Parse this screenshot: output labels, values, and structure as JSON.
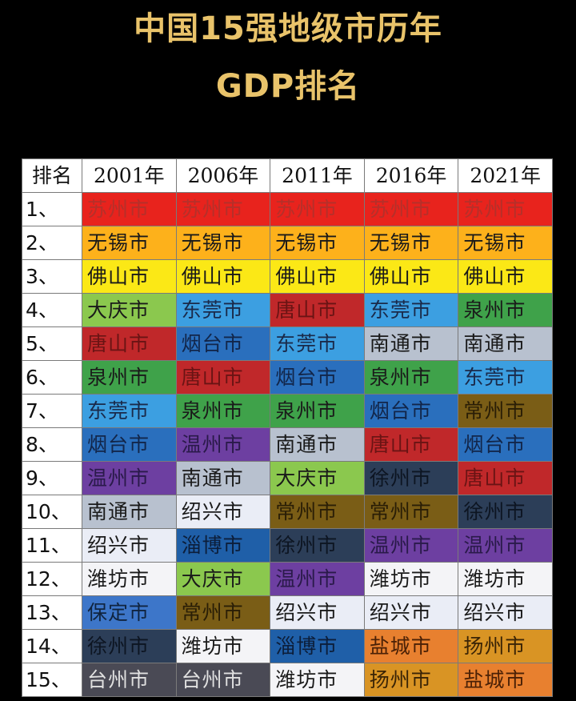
{
  "title_line1": "中国15强地级市历年",
  "title_line2": "GDP排名",
  "header": [
    "排名",
    "2001年",
    "2006年",
    "2011年",
    "2016年",
    "2021年"
  ],
  "colors": {
    "苏州市": {
      "bg": "#e8231d",
      "fg": "#b5302a"
    },
    "无锡市": {
      "bg": "#fdb11b",
      "fg": "#1a1a1a"
    },
    "佛山市": {
      "bg": "#fbe816",
      "fg": "#1a1a1a"
    },
    "大庆市": {
      "bg": "#8bc84e",
      "fg": "#1a1a1a"
    },
    "东莞市": {
      "bg": "#3c9fe1",
      "fg": "#1a2a4a"
    },
    "唐山市": {
      "bg": "#c0282a",
      "fg": "#6a1414"
    },
    "泉州市": {
      "bg": "#3fa24a",
      "fg": "#1a1a1a"
    },
    "烟台市": {
      "bg": "#2a6fbd",
      "fg": "#12264a"
    },
    "温州市": {
      "bg": "#6d3fa1",
      "fg": "#2a1a4a"
    },
    "南通市": {
      "bg": "#b8c1cf",
      "fg": "#1a1a1a"
    },
    "绍兴市": {
      "bg": "#eaedf6",
      "fg": "#1a1a1a"
    },
    "潍坊市": {
      "bg": "#f4f4f7",
      "fg": "#1a1a1a"
    },
    "保定市": {
      "bg": "#3d76c9",
      "fg": "#10243f"
    },
    "徐州市": {
      "bg": "#2c3e58",
      "fg": "#0d1522"
    },
    "台州市": {
      "bg": "#4a4a55",
      "fg": "#e0e0e0"
    },
    "淄博市": {
      "bg": "#1f5fa8",
      "fg": "#0c1e3a"
    },
    "常州市": {
      "bg": "#7a5d16",
      "fg": "#2a1e06"
    },
    "盐城市": {
      "bg": "#e8802f",
      "fg": "#4a2006"
    },
    "扬州市": {
      "bg": "#d99424",
      "fg": "#3a2406"
    }
  },
  "rows": [
    {
      "rank": "1、",
      "cities": [
        "苏州市",
        "苏州市",
        "苏州市",
        "苏州市",
        "苏州市"
      ]
    },
    {
      "rank": "2、",
      "cities": [
        "无锡市",
        "无锡市",
        "无锡市",
        "无锡市",
        "无锡市"
      ]
    },
    {
      "rank": "3、",
      "cities": [
        "佛山市",
        "佛山市",
        "佛山市",
        "佛山市",
        "佛山市"
      ]
    },
    {
      "rank": "4、",
      "cities": [
        "大庆市",
        "东莞市",
        "唐山市",
        "东莞市",
        "泉州市"
      ]
    },
    {
      "rank": "5、",
      "cities": [
        "唐山市",
        "烟台市",
        "东莞市",
        "南通市",
        "南通市"
      ]
    },
    {
      "rank": "6、",
      "cities": [
        "泉州市",
        "唐山市",
        "烟台市",
        "泉州市",
        "东莞市"
      ]
    },
    {
      "rank": "7、",
      "cities": [
        "东莞市",
        "泉州市",
        "泉州市",
        "烟台市",
        "常州市"
      ]
    },
    {
      "rank": "8、",
      "cities": [
        "烟台市",
        "温州市",
        "南通市",
        "唐山市",
        "烟台市"
      ]
    },
    {
      "rank": "9、",
      "cities": [
        "温州市",
        "南通市",
        "大庆市",
        "徐州市",
        "唐山市"
      ]
    },
    {
      "rank": "10、",
      "cities": [
        "南通市",
        "绍兴市",
        "常州市",
        "常州市",
        "徐州市"
      ]
    },
    {
      "rank": "11、",
      "cities": [
        "绍兴市",
        "淄博市",
        "徐州市",
        "温州市",
        "温州市"
      ]
    },
    {
      "rank": "12、",
      "cities": [
        "潍坊市",
        "大庆市",
        "温州市",
        "潍坊市",
        "潍坊市"
      ]
    },
    {
      "rank": "13、",
      "cities": [
        "保定市",
        "常州市",
        "绍兴市",
        "绍兴市",
        "绍兴市"
      ]
    },
    {
      "rank": "14、",
      "cities": [
        "徐州市",
        "潍坊市",
        "淄博市",
        "盐城市",
        "扬州市"
      ]
    },
    {
      "rank": "15、",
      "cities": [
        "台州市",
        "台州市",
        "潍坊市",
        "扬州市",
        "盐城市"
      ]
    }
  ]
}
